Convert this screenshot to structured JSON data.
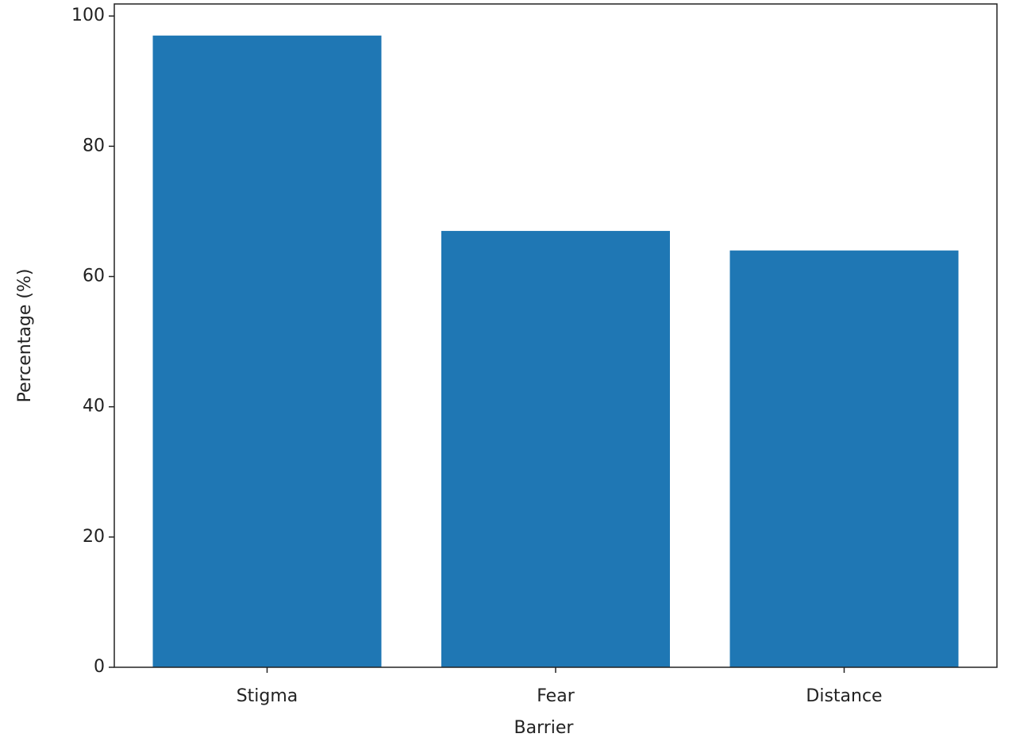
{
  "chart_data": {
    "type": "bar",
    "xlabel": "Barrier",
    "ylabel": "Percentage (%)",
    "categories": [
      "Stigma",
      "Fear",
      "Distance"
    ],
    "values": [
      97,
      67,
      64
    ],
    "color": "#1f77b4",
    "ylim": [
      0,
      101.85
    ],
    "yticks": [
      0,
      20,
      40,
      60,
      80,
      100
    ]
  }
}
